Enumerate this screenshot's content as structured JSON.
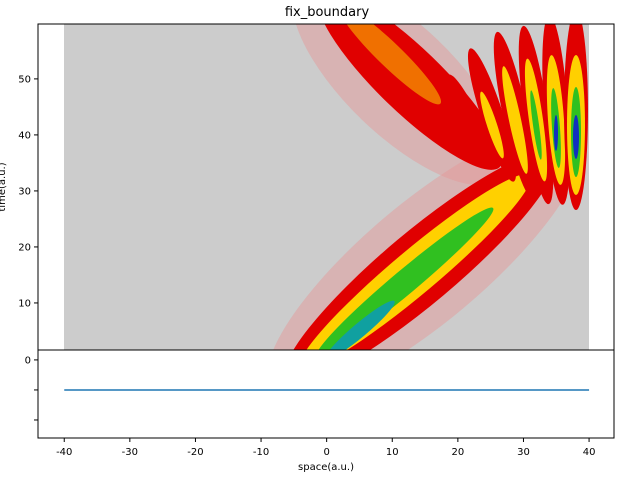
{
  "chart_data": [
    {
      "type": "contour",
      "title": "fix_boundary",
      "ylabel": "time(a.u.)",
      "ylim": [
        1.6,
        59.8
      ],
      "yticks": [
        10,
        20,
        30,
        40,
        50
      ]
    },
    {
      "type": "line",
      "xlabel": "space(a.u.)",
      "xlim": [
        -44,
        43.8
      ],
      "xticks": [
        -40,
        -30,
        -20,
        -10,
        0,
        10,
        20,
        30,
        40
      ],
      "ylim": [
        -2.6,
        0.33
      ],
      "yticks": [
        0,
        {
          "value": -1,
          "label": null
        },
        {
          "value": -2,
          "label": null
        }
      ],
      "x": [
        -40,
        40
      ],
      "series": [
        {
          "color": "#1f77b4",
          "values": [
            -1,
            -1
          ]
        }
      ]
    }
  ]
}
